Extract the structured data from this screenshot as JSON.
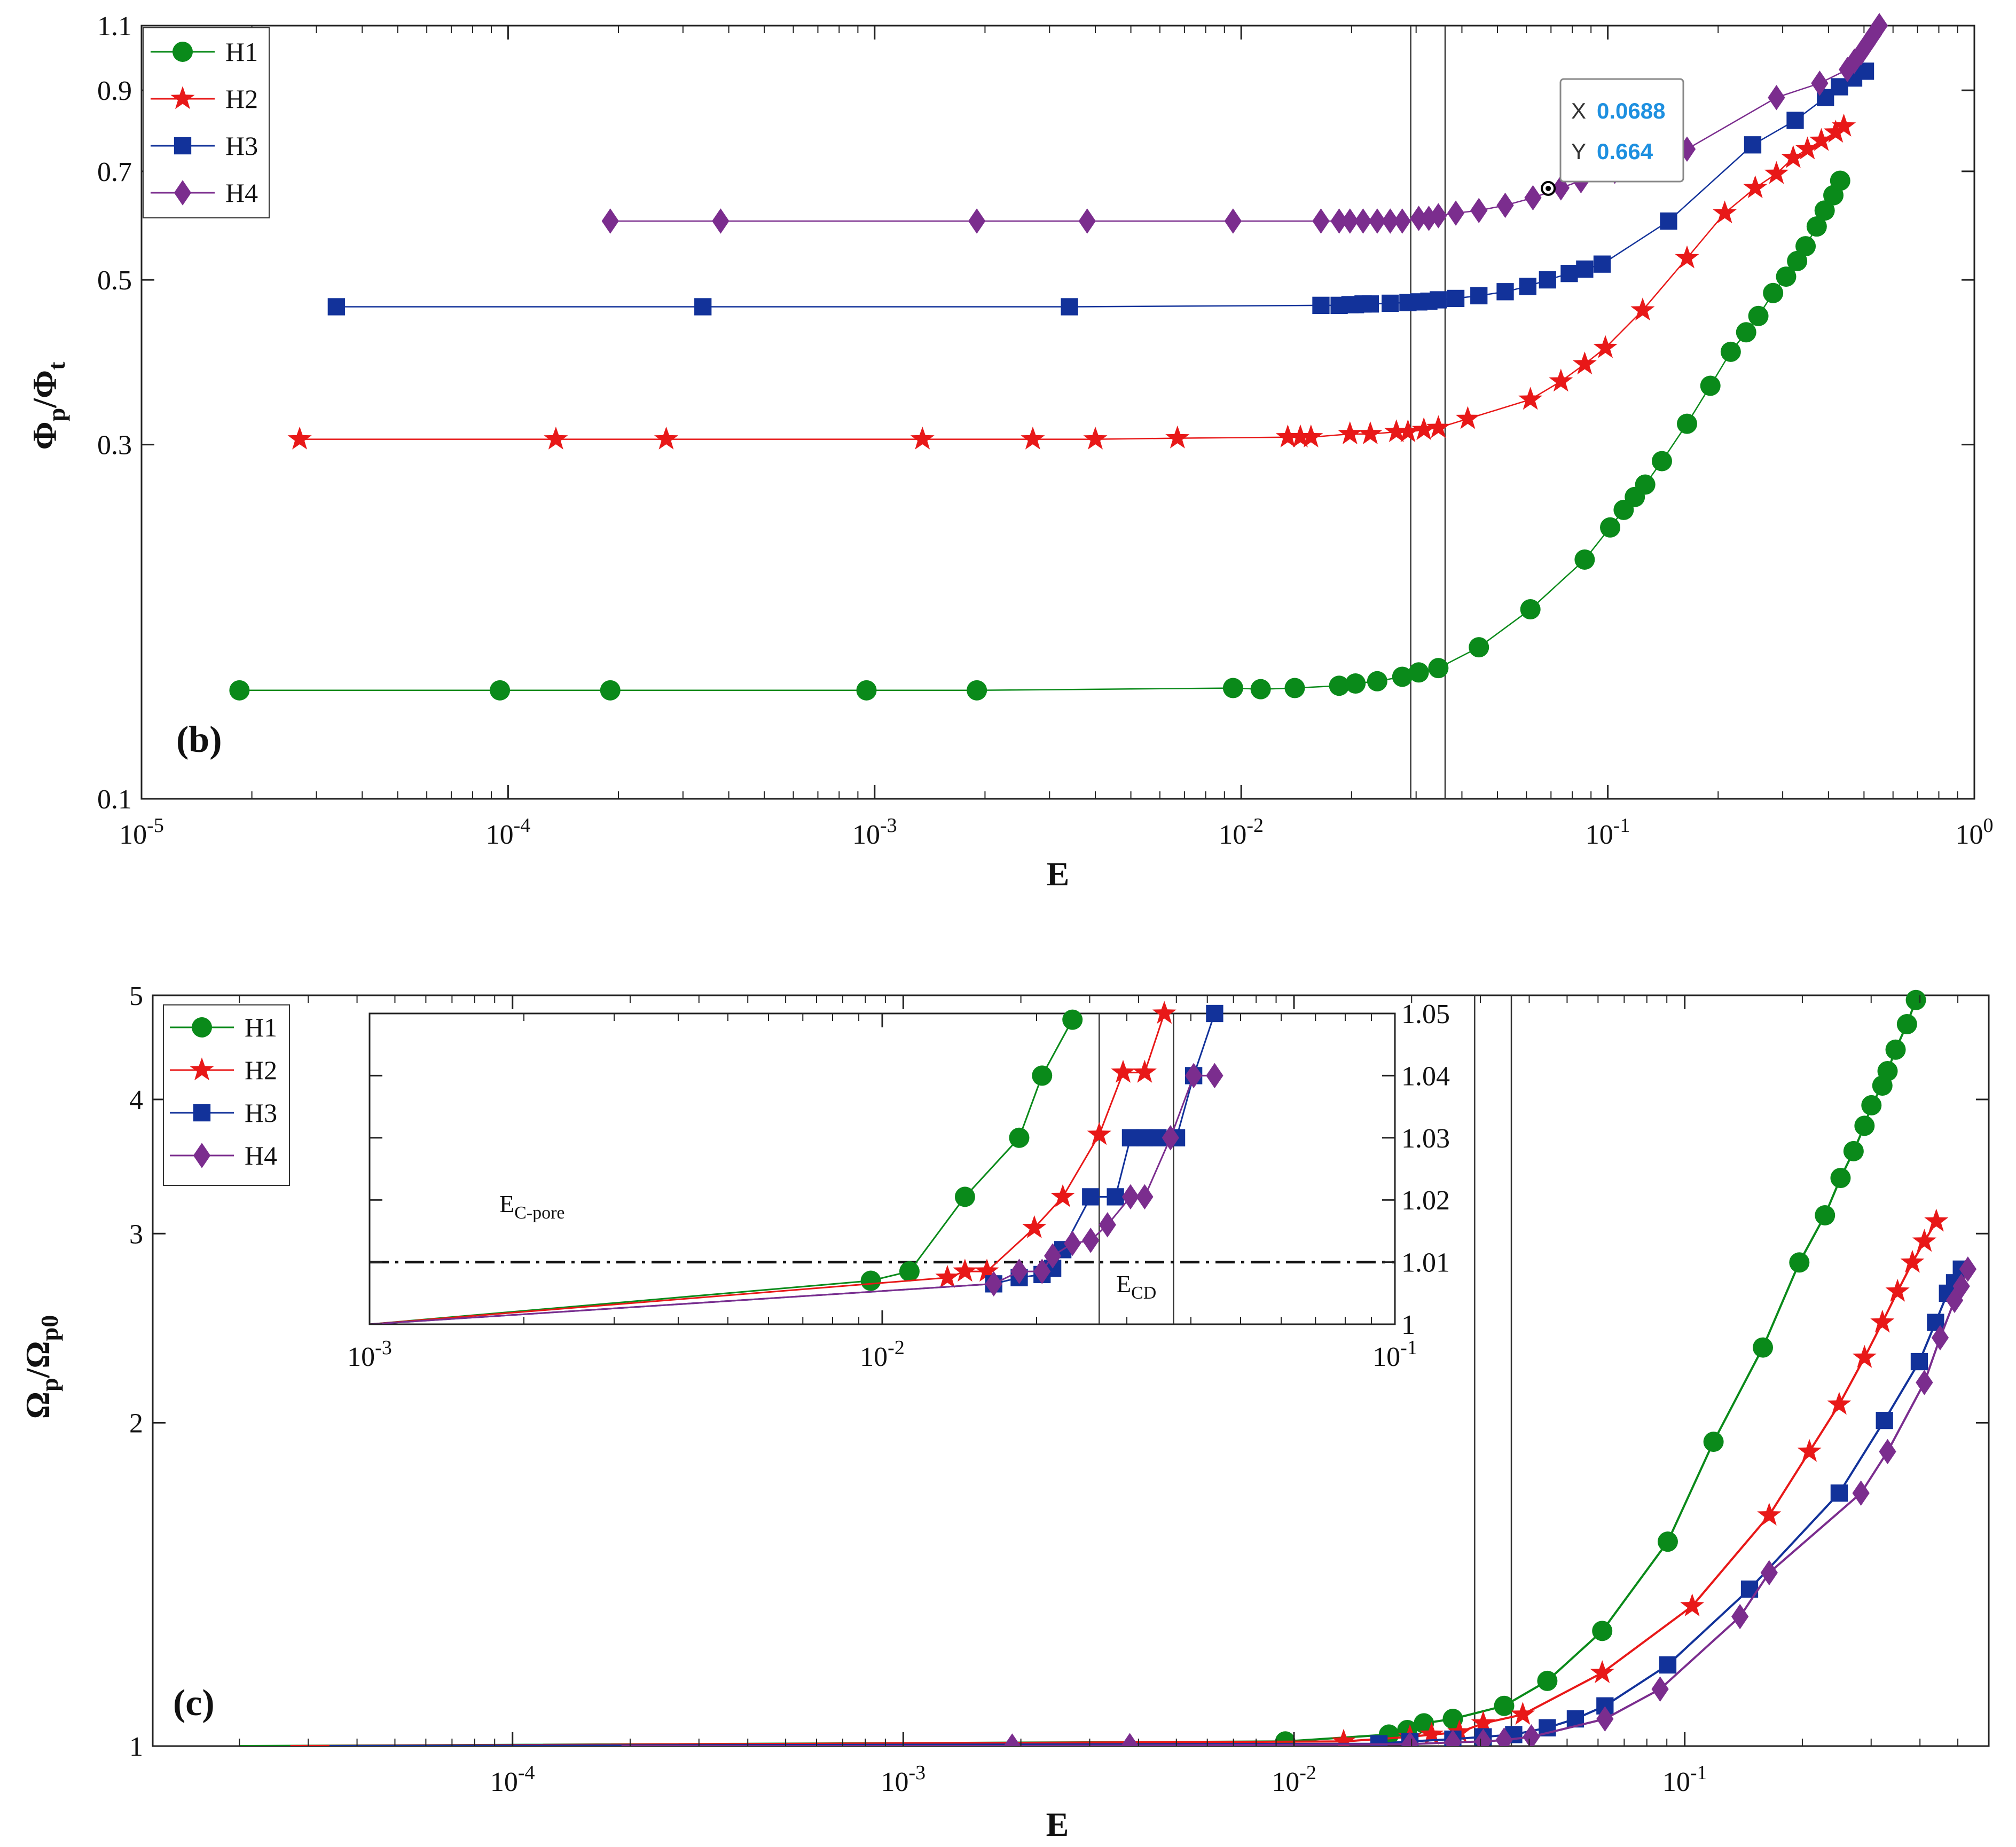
{
  "chart_data": [
    {
      "type": "line",
      "panel_label": "(b)",
      "xlabel": "E",
      "ylabel": "Φp/Φt",
      "xscale": "log",
      "yscale": "log",
      "xlim": [
        1e-05,
        1
      ],
      "ylim": [
        0.1,
        1.1
      ],
      "x_ticks": [
        1e-05,
        0.0001,
        0.001,
        0.01,
        0.1,
        1
      ],
      "x_tick_labels": [
        "10-5",
        "10-4",
        "10-3",
        "10-2",
        "10-1",
        "100"
      ],
      "y_ticks": [
        0.1,
        0.3,
        0.5,
        0.7,
        0.9,
        1.1
      ],
      "y_tick_labels": [
        "0.1",
        "0.3",
        "0.5",
        "0.7",
        "0.9",
        "1.1"
      ],
      "vlines": [
        0.029,
        0.036
      ],
      "legend": {
        "position": "top-left",
        "entries": [
          "H1",
          "H2",
          "H3",
          "H4"
        ]
      },
      "datatip": {
        "x_label": "X",
        "x_value": "0.0688",
        "y_label": "Y",
        "y_value": "0.664",
        "x": 0.0688,
        "y": 0.664
      },
      "series": [
        {
          "name": "H1",
          "color": "#0a8a1a",
          "marker": "circle",
          "x": [
            1.85e-05,
            9.5e-05,
            0.00019,
            0.00095,
            0.0019,
            0.0095,
            0.0113,
            0.014,
            0.0185,
            0.0205,
            0.0235,
            0.0275,
            0.0305,
            0.0345,
            0.0445,
            0.0615,
            0.0865,
            0.1015,
            0.1105,
            0.1185,
            0.1265,
            0.1405,
            0.1645,
            0.1905,
            0.2165,
            0.2385,
            0.2575,
            0.2825,
            0.3065,
            0.3285,
            0.3465,
            0.3715,
            0.3905,
            0.4125,
            0.4305
          ],
          "y": [
            0.14,
            0.14,
            0.14,
            0.14,
            0.14,
            0.141,
            0.1405,
            0.141,
            0.142,
            0.143,
            0.144,
            0.146,
            0.148,
            0.15,
            0.16,
            0.18,
            0.21,
            0.232,
            0.245,
            0.255,
            0.265,
            0.285,
            0.32,
            0.36,
            0.4,
            0.425,
            0.447,
            0.48,
            0.505,
            0.53,
            0.555,
            0.59,
            0.62,
            0.65,
            0.68
          ]
        },
        {
          "name": "H2",
          "color": "#e81818",
          "marker": "star",
          "x": [
            2.7e-05,
            0.000135,
            0.00027,
            0.00135,
            0.0027,
            0.004,
            0.0067,
            0.0134,
            0.0145,
            0.0155,
            0.0198,
            0.0225,
            0.0265,
            0.0285,
            0.0315,
            0.0345,
            0.0415,
            0.0615,
            0.0745,
            0.0865,
            0.0985,
            0.1245,
            0.1645,
            0.2085,
            0.2525,
            0.2885,
            0.3205,
            0.3505,
            0.3825,
            0.4185,
            0.4405
          ],
          "y": [
            0.305,
            0.305,
            0.305,
            0.305,
            0.305,
            0.305,
            0.306,
            0.307,
            0.307,
            0.307,
            0.31,
            0.31,
            0.312,
            0.312,
            0.314,
            0.316,
            0.325,
            0.345,
            0.365,
            0.385,
            0.405,
            0.455,
            0.535,
            0.615,
            0.665,
            0.695,
            0.73,
            0.75,
            0.77,
            0.79,
            0.805
          ]
        },
        {
          "name": "H3",
          "color": "#12329a",
          "marker": "square",
          "x": [
            3.4e-05,
            0.00034,
            0.0034,
            0.0165,
            0.0185,
            0.0198,
            0.0205,
            0.0215,
            0.0225,
            0.0255,
            0.0285,
            0.0305,
            0.0325,
            0.0345,
            0.0385,
            0.0445,
            0.0525,
            0.0605,
            0.0685,
            0.0785,
            0.0865,
            0.0965,
            0.1465,
            0.2485,
            0.3245,
            0.3925,
            0.4285,
            0.4685,
            0.5045
          ],
          "y": [
            0.46,
            0.46,
            0.46,
            0.462,
            0.462,
            0.463,
            0.463,
            0.464,
            0.464,
            0.465,
            0.466,
            0.467,
            0.468,
            0.47,
            0.472,
            0.476,
            0.482,
            0.49,
            0.5,
            0.51,
            0.517,
            0.525,
            0.6,
            0.76,
            0.82,
            0.88,
            0.91,
            0.935,
            0.955
          ]
        },
        {
          "name": "H4",
          "color": "#7b2d8e",
          "marker": "diamond",
          "x": [
            0.00019,
            0.00038,
            0.0019,
            0.0038,
            0.0095,
            0.0165,
            0.0185,
            0.0198,
            0.0215,
            0.0235,
            0.0255,
            0.0275,
            0.0305,
            0.0325,
            0.0345,
            0.0385,
            0.0445,
            0.0525,
            0.0625,
            0.0745,
            0.0845,
            0.1045,
            0.1245,
            0.1645,
            0.2885,
            0.3785,
            0.4505,
            0.4705,
            0.4905,
            0.5105,
            0.5305,
            0.5505
          ],
          "y": [
            0.6,
            0.6,
            0.6,
            0.6,
            0.6,
            0.6,
            0.6,
            0.6,
            0.6,
            0.6,
            0.6,
            0.6,
            0.605,
            0.605,
            0.61,
            0.615,
            0.62,
            0.63,
            0.645,
            0.665,
            0.68,
            0.7,
            0.725,
            0.75,
            0.88,
            0.92,
            0.96,
            0.985,
            1.01,
            1.04,
            1.07,
            1.1
          ]
        }
      ]
    },
    {
      "type": "line",
      "panel_label": "(c)",
      "xlabel": "E",
      "ylabel": "Ωp/Ωp0",
      "xscale": "log",
      "yscale": "log",
      "xlim": [
        1.2e-05,
        0.6
      ],
      "ylim": [
        1,
        5
      ],
      "x_ticks": [
        0.0001,
        0.001,
        0.01,
        0.1
      ],
      "x_tick_labels": [
        "10-4",
        "10-3",
        "10-2",
        "10-1"
      ],
      "y_ticks": [
        1,
        2,
        3,
        4,
        5
      ],
      "y_tick_labels": [
        "1",
        "2",
        "3",
        "4",
        "5"
      ],
      "vlines": [
        0.029,
        0.036
      ],
      "legend": {
        "position": "top-left",
        "entries": [
          "H1",
          "H2",
          "H3",
          "H4"
        ]
      },
      "series": [
        {
          "name": "H1",
          "color": "#0a8a1a",
          "marker": "circle",
          "x": [
            2e-05,
            0.0095,
            0.0175,
            0.0195,
            0.0215,
            0.0255,
            0.0345,
            0.0445,
            0.0615,
            0.0905,
            0.1185,
            0.1585,
            0.1965,
            0.2285,
            0.2505,
            0.2705,
            0.2885,
            0.3005,
            0.3205,
            0.3305,
            0.3465,
            0.3705,
            0.3905
          ],
          "y": [
            1.0,
            1.01,
            1.025,
            1.035,
            1.05,
            1.06,
            1.09,
            1.15,
            1.28,
            1.55,
            1.92,
            2.35,
            2.82,
            3.12,
            3.38,
            3.58,
            3.78,
            3.95,
            4.12,
            4.25,
            4.45,
            4.7,
            4.95
          ]
        },
        {
          "name": "H2",
          "color": "#e81818",
          "marker": "star",
          "x": [
            2.7e-05,
            0.0134,
            0.0198,
            0.0225,
            0.0265,
            0.0305,
            0.0385,
            0.0615,
            0.1045,
            0.1645,
            0.2085,
            0.2485,
            0.2885,
            0.3205,
            0.3505,
            0.3825,
            0.4105,
            0.4405
          ],
          "y": [
            1.0,
            1.01,
            1.02,
            1.025,
            1.03,
            1.05,
            1.07,
            1.17,
            1.35,
            1.64,
            1.88,
            2.08,
            2.3,
            2.48,
            2.65,
            2.82,
            2.95,
            3.08
          ]
        },
        {
          "name": "H3",
          "color": "#12329a",
          "marker": "square",
          "x": [
            3.4e-05,
            0.0165,
            0.0198,
            0.0255,
            0.0305,
            0.0365,
            0.0445,
            0.0525,
            0.0625,
            0.0905,
            0.1465,
            0.2485,
            0.3245,
            0.3985,
            0.4385,
            0.4705,
            0.4905,
            0.5105
          ],
          "y": [
            1.0,
            1.005,
            1.01,
            1.015,
            1.02,
            1.025,
            1.04,
            1.06,
            1.09,
            1.19,
            1.4,
            1.72,
            2.01,
            2.28,
            2.48,
            2.64,
            2.7,
            2.78
          ]
        },
        {
          "name": "H4",
          "color": "#7b2d8e",
          "marker": "diamond",
          "x": [
            0.00019,
            0.0019,
            0.0038,
            0.0198,
            0.0255,
            0.0305,
            0.0345,
            0.0405,
            0.0625,
            0.0865,
            0.1385,
            0.1645,
            0.2825,
            0.3305,
            0.4105,
            0.4505,
            0.4905,
            0.5105,
            0.5305
          ],
          "y": [
            1.0,
            1.0,
            1.001,
            1.004,
            1.008,
            1.01,
            1.013,
            1.02,
            1.06,
            1.13,
            1.32,
            1.45,
            1.72,
            1.88,
            2.18,
            2.4,
            2.6,
            2.68,
            2.78
          ]
        }
      ]
    },
    {
      "type": "line",
      "panel_label": "inset",
      "xscale": "log",
      "xlim": [
        0.001,
        0.1
      ],
      "ylim": [
        1.0,
        1.05
      ],
      "x_ticks": [
        0.001,
        0.01,
        0.1
      ],
      "x_tick_labels": [
        "10-3",
        "10-2",
        "10-1"
      ],
      "y_ticks": [
        1,
        1.01,
        1.02,
        1.03,
        1.04,
        1.05
      ],
      "y_tick_labels": [
        "1",
        "1.01",
        "1.02",
        "1.03",
        "1.04",
        "1.05"
      ],
      "hline": {
        "y": 1.01,
        "style": "dash-dot"
      },
      "vlines": [
        0.0265,
        0.037
      ],
      "annotations": [
        {
          "text": "E",
          "sub": "C-pore"
        },
        {
          "text": "E",
          "sub": "CD"
        }
      ],
      "series": [
        {
          "name": "H1",
          "color": "#0a8a1a",
          "marker": "circle",
          "x": [
            0.001,
            0.0095,
            0.0113,
            0.0145,
            0.0185,
            0.0205,
            0.0235
          ],
          "y": [
            1.0,
            1.007,
            1.0085,
            1.0205,
            1.03,
            1.04,
            1.049
          ]
        },
        {
          "name": "H2",
          "color": "#e81818",
          "marker": "star",
          "x": [
            0.001,
            0.0134,
            0.0145,
            0.016,
            0.0198,
            0.0225,
            0.0265,
            0.0295,
            0.0325,
            0.0355
          ],
          "y": [
            1.0,
            1.0075,
            1.0085,
            1.0085,
            1.0155,
            1.0205,
            1.0305,
            1.0405,
            1.0405,
            1.05
          ]
        },
        {
          "name": "H3",
          "color": "#12329a",
          "marker": "square",
          "x": [
            0.001,
            0.0165,
            0.0185,
            0.0205,
            0.0215,
            0.0225,
            0.0255,
            0.0285,
            0.0305,
            0.0325,
            0.0345,
            0.0375,
            0.0405,
            0.0445
          ],
          "y": [
            1.0,
            1.0065,
            1.0075,
            1.008,
            1.009,
            1.012,
            1.0205,
            1.0205,
            1.03,
            1.03,
            1.03,
            1.03,
            1.04,
            1.05
          ]
        },
        {
          "name": "H4",
          "color": "#7b2d8e",
          "marker": "diamond",
          "x": [
            0.001,
            0.0165,
            0.0185,
            0.0205,
            0.0215,
            0.0235,
            0.0255,
            0.0275,
            0.0305,
            0.0325,
            0.0365,
            0.0405,
            0.0445
          ],
          "y": [
            1.0,
            1.0065,
            1.0085,
            1.0085,
            1.011,
            1.013,
            1.0135,
            1.016,
            1.0205,
            1.0205,
            1.03,
            1.04,
            1.04
          ]
        }
      ]
    }
  ]
}
